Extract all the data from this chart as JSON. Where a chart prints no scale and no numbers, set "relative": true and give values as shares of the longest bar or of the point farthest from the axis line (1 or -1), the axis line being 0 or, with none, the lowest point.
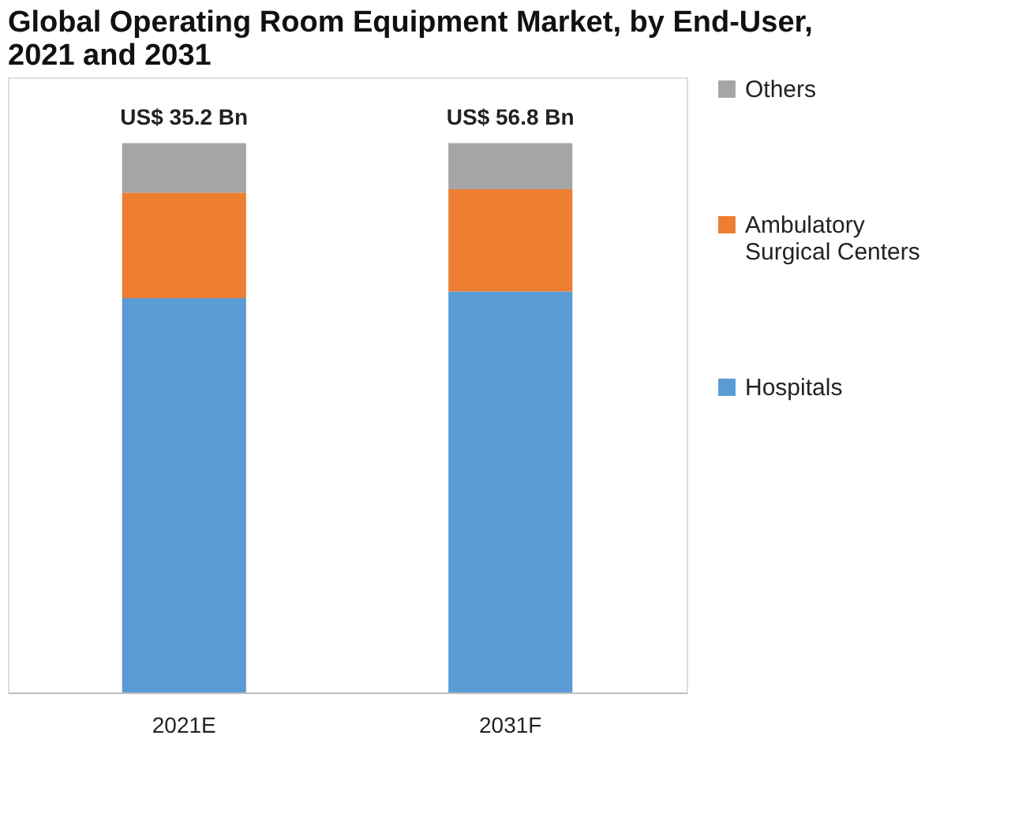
{
  "chart_data": {
    "type": "bar",
    "title": "Global Operating Room Equipment  Market, by End-User, 2021 and 2031",
    "categories": [
      "2021E",
      "2031F"
    ],
    "relative": true,
    "stacked": true,
    "legend": "right",
    "grid": false,
    "series": [
      {
        "name": "Hospitals",
        "color": "#5b9bd5",
        "values": [
          0.718,
          0.73
        ]
      },
      {
        "name": "Ambulatory Surgical Centers",
        "color": "#ed7d31",
        "values": [
          0.192,
          0.186
        ]
      },
      {
        "name": "Others",
        "color": "#a5a5a5",
        "values": [
          0.09,
          0.084
        ]
      }
    ],
    "totals": [
      "US$ 35.2 Bn",
      "US$ 56.8 Bn"
    ]
  }
}
